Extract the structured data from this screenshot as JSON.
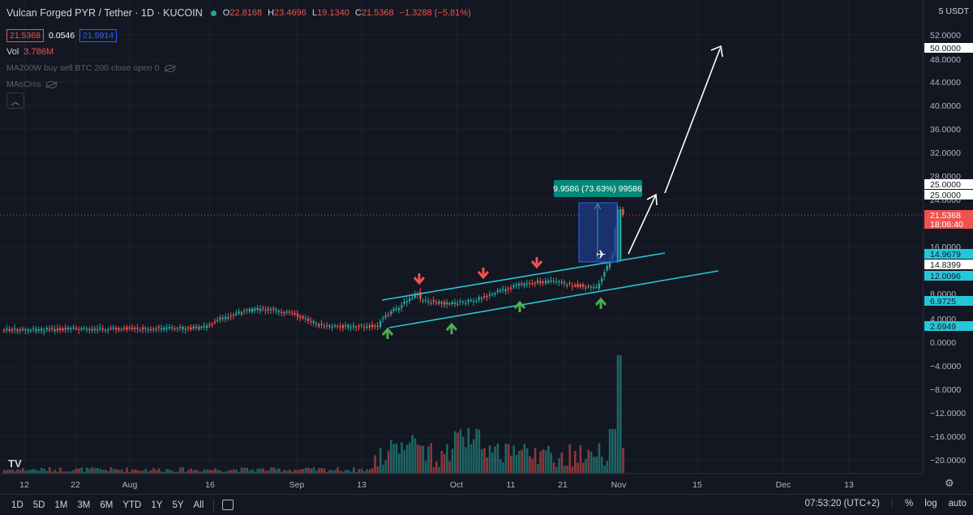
{
  "header": {
    "title": "Vulcan Forged PYR / Tether · 1D · KUCOIN",
    "ohlc": {
      "o_label": "O",
      "o": "22.8168",
      "h_label": "H",
      "h": "23.4696",
      "l_label": "L",
      "l": "19.1340",
      "c_label": "C",
      "c": "21.5368",
      "change": "−1.3288 (−5.81%)"
    },
    "sell_price": "21.5368",
    "spread": "0.0546",
    "buy_price": "21.5914",
    "vol_label": "Vol",
    "vol_value": "3.786M",
    "indicator1": "MA200W buy sell BTC 200 close open 0",
    "indicator2": "MAsCrss"
  },
  "axis": {
    "currency": "5 USDT"
  },
  "colors": {
    "up": "#26a69a",
    "down": "#ef5350",
    "channel": "#26c6da",
    "measure_fill": "#1e3a8a",
    "measure_label": "#00897b",
    "bg": "#131722"
  },
  "chart_data": {
    "type": "candlestick",
    "y_ticks": [
      "52.0000",
      "48.0000",
      "44.0000",
      "40.0000",
      "36.0000",
      "32.0000",
      "28.0000",
      "24.0000",
      "16.0000",
      "8.0000",
      "4.0000",
      "0.0000",
      "−4.0000",
      "−8.0000",
      "−12.0000",
      "−16.0000",
      "−20.0000"
    ],
    "x_ticks": [
      "12",
      "22",
      "Aug",
      "16",
      "Sep",
      "13",
      "Oct",
      "11",
      "21",
      "Nov",
      "15",
      "Dec",
      "13"
    ],
    "price_labels": [
      {
        "text": "50.0000",
        "style": "white"
      },
      {
        "text": "25.0000",
        "style": "white"
      },
      {
        "text": "25.0000",
        "style": "white"
      },
      {
        "text": "21.5368",
        "style": "red"
      },
      {
        "text": "18:06:40",
        "style": "red"
      },
      {
        "text": "14.9679",
        "style": "cyan"
      },
      {
        "text": "14.8399",
        "style": "white"
      },
      {
        "text": "12.0096",
        "style": "cyan"
      },
      {
        "text": "6.9725",
        "style": "cyan"
      },
      {
        "text": "2.6949",
        "style": "cyan"
      }
    ],
    "measure_label": "9.9586 (73.63%) 99586",
    "last_price": 21.5368,
    "ylim": [
      -20,
      52
    ]
  },
  "footer": {
    "timeframes": [
      "1D",
      "5D",
      "1M",
      "3M",
      "6M",
      "YTD",
      "1Y",
      "5Y",
      "All"
    ],
    "clock": "07:53:20 (UTC+2)",
    "pct": "%",
    "log": "log",
    "auto": "auto"
  }
}
